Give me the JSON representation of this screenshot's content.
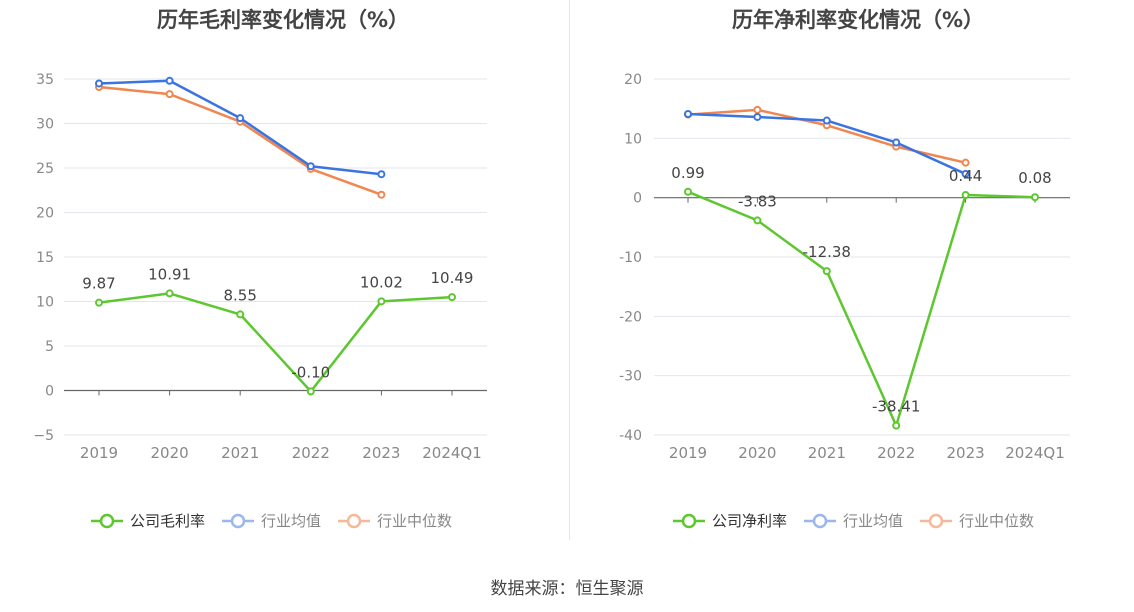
{
  "source_text": "数据来源：恒生聚源",
  "chart_data": [
    {
      "type": "line",
      "title": "历年毛利率变化情况（%）",
      "categories": [
        "2019",
        "2020",
        "2021",
        "2022",
        "2023",
        "2024Q1"
      ],
      "yticks": [
        35,
        30,
        25,
        20,
        15,
        10,
        5,
        0,
        -5
      ],
      "yticklabels": [
        "35",
        "30",
        "25",
        "20",
        "15",
        "10",
        "5",
        "0",
        "−5"
      ],
      "ylim": [
        -5,
        35
      ],
      "grid": true,
      "legend_position": "bottom",
      "series": [
        {
          "name": "公司毛利率",
          "color": "#5cc72e",
          "values": [
            9.87,
            10.91,
            8.55,
            -0.1,
            10.02,
            10.49
          ],
          "labels": [
            "9.87",
            "10.91",
            "8.55",
            "-0.10",
            "10.02",
            "10.49"
          ]
        },
        {
          "name": "行业均值",
          "color": "#3b74e0",
          "values": [
            34.5,
            34.8,
            30.6,
            25.2,
            24.3,
            null
          ]
        },
        {
          "name": "行业中位数",
          "color": "#f08650",
          "values": [
            34.1,
            33.3,
            30.2,
            24.9,
            22.0,
            null
          ]
        }
      ]
    },
    {
      "type": "line",
      "title": "历年净利率变化情况（%）",
      "categories": [
        "2019",
        "2020",
        "2021",
        "2022",
        "2023",
        "2024Q1"
      ],
      "yticks": [
        20,
        10,
        0,
        -10,
        -20,
        -30,
        -40
      ],
      "yticklabels": [
        "20",
        "10",
        "0",
        "-10",
        "-20",
        "-30",
        "-40"
      ],
      "ylim": [
        -40,
        20
      ],
      "grid": true,
      "legend_position": "bottom",
      "series": [
        {
          "name": "公司净利率",
          "color": "#5cc72e",
          "values": [
            0.99,
            -3.83,
            -12.38,
            -38.41,
            0.44,
            0.08
          ],
          "labels": [
            "0.99",
            "-3.83",
            "-12.38",
            "-38.41",
            "0.44",
            "0.08"
          ]
        },
        {
          "name": "行业均值",
          "color": "#3b74e0",
          "values": [
            14.1,
            13.6,
            13.0,
            9.3,
            4.0,
            null
          ]
        },
        {
          "name": "行业中位数",
          "color": "#f08650",
          "values": [
            14.0,
            14.8,
            12.2,
            8.6,
            5.9,
            null
          ]
        }
      ]
    }
  ]
}
